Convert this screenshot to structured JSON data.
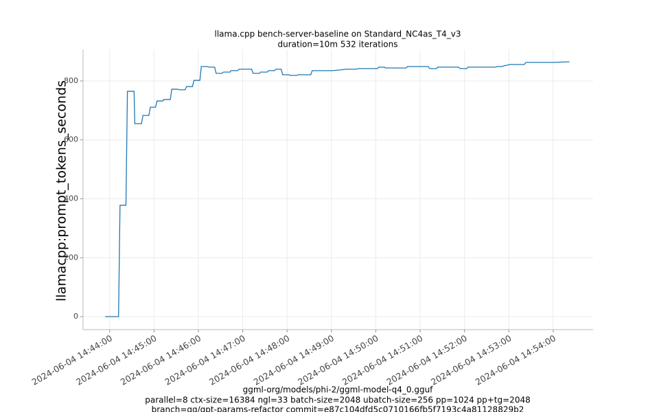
{
  "chart_data": {
    "type": "line",
    "title": [
      "llama.cpp bench-server-baseline on Standard_NC4as_T4_v3",
      "duration=10m 532 iterations"
    ],
    "ylabel": "llamacpp:prompt_tokens_seconds",
    "xlabel": [
      "ggml-org/models/phi-2/ggml-model-q4_0.gguf",
      "parallel=8 ctx-size=16384 ngl=33 batch-size=2048 ubatch-size=256 pp=1024 pp+tg=2048",
      "branch=gg/gpt-params-refactor commit=e87c104dfd5c0710166fb5f7193c4a81128829b2"
    ],
    "x": [
      "2024-06-04 14:43:54",
      "2024-06-04 14:44:12",
      "2024-06-04 14:44:14",
      "2024-06-04 14:44:22",
      "2024-06-04 14:44:24",
      "2024-06-04 14:44:33",
      "2024-06-04 14:44:34",
      "2024-06-04 14:44:43",
      "2024-06-04 14:44:45",
      "2024-06-04 14:44:53",
      "2024-06-04 14:44:55",
      "2024-06-04 14:45:02",
      "2024-06-04 14:45:04",
      "2024-06-04 14:45:12",
      "2024-06-04 14:45:13",
      "2024-06-04 14:45:22",
      "2024-06-04 14:45:24",
      "2024-06-04 14:45:32",
      "2024-06-04 14:45:34",
      "2024-06-04 14:45:42",
      "2024-06-04 14:45:44",
      "2024-06-04 14:45:52",
      "2024-06-04 14:45:54",
      "2024-06-04 14:46:02",
      "2024-06-04 14:46:04",
      "2024-06-04 14:46:12",
      "2024-06-04 14:46:14",
      "2024-06-04 14:46:22",
      "2024-06-04 14:46:24",
      "2024-06-04 14:46:32",
      "2024-06-04 14:46:34",
      "2024-06-04 14:46:43",
      "2024-06-04 14:46:44",
      "2024-06-04 14:46:53",
      "2024-06-04 14:46:55",
      "2024-06-04 14:47:12",
      "2024-06-04 14:47:14",
      "2024-06-04 14:47:23",
      "2024-06-04 14:47:24",
      "2024-06-04 14:47:33",
      "2024-06-04 14:47:35",
      "2024-06-04 14:47:43",
      "2024-06-04 14:47:45",
      "2024-06-04 14:47:52",
      "2024-06-04 14:47:54",
      "2024-06-04 14:48:02",
      "2024-06-04 14:48:04",
      "2024-06-04 14:48:13",
      "2024-06-04 14:48:15",
      "2024-06-04 14:48:32",
      "2024-06-04 14:48:34",
      "2024-06-04 14:49:01",
      "2024-06-04 14:49:11",
      "2024-06-04 14:49:20",
      "2024-06-04 14:49:34",
      "2024-06-04 14:49:36",
      "2024-06-04 14:50:02",
      "2024-06-04 14:50:04",
      "2024-06-04 14:50:12",
      "2024-06-04 14:50:13",
      "2024-06-04 14:50:41",
      "2024-06-04 14:50:43",
      "2024-06-04 14:51:11",
      "2024-06-04 14:51:13",
      "2024-06-04 14:51:22",
      "2024-06-04 14:51:24",
      "2024-06-04 14:51:52",
      "2024-06-04 14:51:54",
      "2024-06-04 14:52:03",
      "2024-06-04 14:52:05",
      "2024-06-04 14:52:42",
      "2024-06-04 14:52:44",
      "2024-06-04 14:52:51",
      "2024-06-04 14:52:53",
      "2024-06-04 14:53:02",
      "2024-06-04 14:53:21",
      "2024-06-04 14:53:23",
      "2024-06-04 14:54:00",
      "2024-06-04 14:54:22"
    ],
    "series": [
      {
        "name": "llamacpp:prompt_tokens_seconds",
        "color": "#1f77b4",
        "values": [
          0,
          0,
          378,
          378,
          765,
          765,
          655,
          655,
          683,
          683,
          711,
          711,
          732,
          732,
          737,
          737,
          772,
          772,
          770,
          770,
          781,
          781,
          802,
          802,
          849,
          849,
          847,
          847,
          826,
          826,
          830,
          830,
          835,
          835,
          840,
          840,
          826,
          826,
          830,
          830,
          835,
          835,
          840,
          840,
          821,
          821,
          819,
          819,
          821,
          821,
          835,
          835,
          837,
          840,
          840,
          842,
          842,
          847,
          847,
          844,
          844,
          849,
          849,
          842,
          842,
          847,
          847,
          842,
          842,
          847,
          847,
          849,
          849,
          851,
          856,
          856,
          863,
          863,
          865
        ]
      }
    ],
    "xlim": [
      "2024-06-04 14:43:24",
      "2024-06-04 14:54:54"
    ],
    "xticks": [
      "2024-06-04 14:44:00",
      "2024-06-04 14:45:00",
      "2024-06-04 14:46:00",
      "2024-06-04 14:47:00",
      "2024-06-04 14:48:00",
      "2024-06-04 14:49:00",
      "2024-06-04 14:50:00",
      "2024-06-04 14:51:00",
      "2024-06-04 14:52:00",
      "2024-06-04 14:53:00",
      "2024-06-04 14:54:00"
    ],
    "ylim": [
      -44,
      907
    ],
    "yticks": [
      0,
      200,
      400,
      600,
      800
    ],
    "grid": true
  }
}
